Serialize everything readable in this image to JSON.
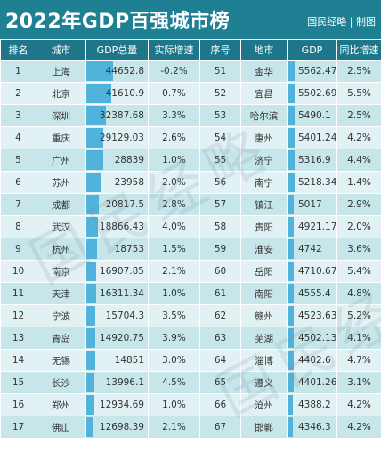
{
  "title": "2022年GDP百强城市榜",
  "credit": "国民经略 | 制图",
  "watermark_text": "国民经略",
  "headers": [
    "排名",
    "城市",
    "GDP总量",
    "实际增速",
    "序号",
    "地市",
    "GDP",
    "同比增速"
  ],
  "left_rows": [
    {
      "rank": "1",
      "city": "上海",
      "gdp": "44652.8",
      "growth": "-0.2%"
    },
    {
      "rank": "2",
      "city": "北京",
      "gdp": "41610.9",
      "growth": "0.7%"
    },
    {
      "rank": "3",
      "city": "深圳",
      "gdp": "32387.68",
      "growth": "3.3%"
    },
    {
      "rank": "4",
      "city": "重庆",
      "gdp": "29129.03",
      "growth": "2.6%"
    },
    {
      "rank": "5",
      "city": "广州",
      "gdp": "28839",
      "growth": "1.0%"
    },
    {
      "rank": "6",
      "city": "苏州",
      "gdp": "23958",
      "growth": "2.0%"
    },
    {
      "rank": "7",
      "city": "成都",
      "gdp": "20817.5",
      "growth": "2.8%"
    },
    {
      "rank": "8",
      "city": "武汉",
      "gdp": "18866.43",
      "growth": "4.0%"
    },
    {
      "rank": "9",
      "city": "杭州",
      "gdp": "18753",
      "growth": "1.5%"
    },
    {
      "rank": "10",
      "city": "南京",
      "gdp": "16907.85",
      "growth": "2.1%"
    },
    {
      "rank": "11",
      "city": "天津",
      "gdp": "16311.34",
      "growth": "1.0%"
    },
    {
      "rank": "12",
      "city": "宁波",
      "gdp": "15704.3",
      "growth": "3.5%"
    },
    {
      "rank": "13",
      "city": "青岛",
      "gdp": "14920.75",
      "growth": "3.9%"
    },
    {
      "rank": "14",
      "city": "无锡",
      "gdp": "14851",
      "growth": "3.0%"
    },
    {
      "rank": "15",
      "city": "长沙",
      "gdp": "13996.1",
      "growth": "4.5%"
    },
    {
      "rank": "16",
      "city": "郑州",
      "gdp": "12934.69",
      "growth": "1.0%"
    },
    {
      "rank": "17",
      "city": "佛山",
      "gdp": "12698.39",
      "growth": "2.1%"
    }
  ],
  "right_rows": [
    {
      "seq": "51",
      "city": "金华",
      "gdp": "5562.47",
      "growth": "2.5%"
    },
    {
      "seq": "52",
      "city": "宜昌",
      "gdp": "5502.69",
      "growth": "5.5%"
    },
    {
      "seq": "53",
      "city": "哈尔滨",
      "gdp": "5490.1",
      "growth": "2.5%"
    },
    {
      "seq": "54",
      "city": "惠州",
      "gdp": "5401.24",
      "growth": "4.2%"
    },
    {
      "seq": "55",
      "city": "济宁",
      "gdp": "5316.9",
      "growth": "4.4%"
    },
    {
      "seq": "56",
      "city": "南宁",
      "gdp": "5218.34",
      "growth": "1.4%"
    },
    {
      "seq": "57",
      "city": "镇江",
      "gdp": "5017",
      "growth": "2.9%"
    },
    {
      "seq": "58",
      "city": "贵阳",
      "gdp": "4921.17",
      "growth": "2.0%"
    },
    {
      "seq": "59",
      "city": "淮安",
      "gdp": "4742",
      "growth": "3.6%"
    },
    {
      "seq": "60",
      "city": "岳阳",
      "gdp": "4710.67",
      "growth": "5.4%"
    },
    {
      "seq": "61",
      "city": "南阳",
      "gdp": "4555.4",
      "growth": "4.8%"
    },
    {
      "seq": "62",
      "city": "赣州",
      "gdp": "4523.63",
      "growth": "5.2%"
    },
    {
      "seq": "63",
      "city": "芜湖",
      "gdp": "4502.13",
      "growth": "4.1%"
    },
    {
      "seq": "64",
      "city": "淄博",
      "gdp": "4402.6",
      "growth": "4.7%"
    },
    {
      "seq": "65",
      "city": "遵义",
      "gdp": "4401.26",
      "growth": "3.1%"
    },
    {
      "seq": "66",
      "city": "沧州",
      "gdp": "4388.2",
      "growth": "4.2%"
    },
    {
      "seq": "67",
      "city": "邯郸",
      "gdp": "4346.3",
      "growth": "4.2%"
    }
  ],
  "colors": {
    "header_bg": "#1f7f93",
    "bar": "#4fb3dc",
    "row_odd": "#c6e6ea",
    "row_even": "#e2f2f4"
  }
}
